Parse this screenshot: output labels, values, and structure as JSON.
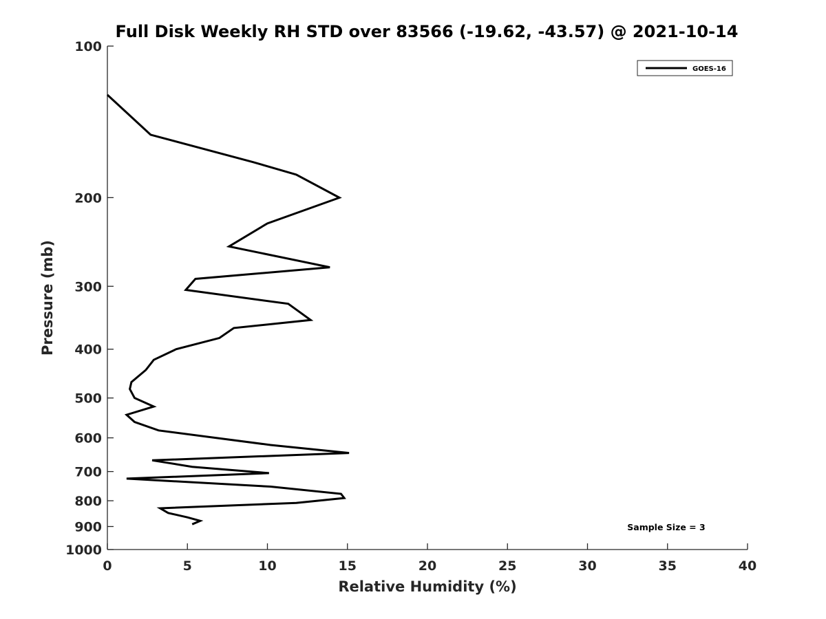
{
  "chart_data": {
    "type": "line",
    "title": "Full Disk Weekly RH STD over 83566 (-19.62, -43.57) @ 2021-10-14",
    "xlabel": "Relative Humidity (%)",
    "ylabel": "Pressure (mb)",
    "xlim": [
      0,
      40
    ],
    "ylim": [
      100,
      1000
    ],
    "yscale": "log",
    "y_reversed": true,
    "grid": false,
    "xticks": [
      0,
      5,
      10,
      15,
      20,
      25,
      30,
      35,
      40
    ],
    "xtick_labels": [
      "0",
      "5",
      "10",
      "15",
      "20",
      "25",
      "30",
      "35",
      "40"
    ],
    "yticks": [
      100,
      200,
      300,
      400,
      500,
      600,
      700,
      800,
      900,
      1000
    ],
    "ytick_labels": [
      "100",
      "200",
      "300",
      "400",
      "500",
      "600",
      "700",
      "800",
      "900",
      "1000"
    ],
    "legend": {
      "position": "top-right",
      "entries": [
        "GOES-16"
      ]
    },
    "annotation": "Sample Size = 3",
    "series": [
      {
        "name": "GOES-16",
        "color": "#000000",
        "x": [
          0.0,
          2.7,
          9.1,
          11.8,
          14.5,
          10.0,
          7.6,
          13.9,
          5.5,
          4.9,
          11.3,
          12.7,
          7.9,
          7.0,
          4.3,
          2.9,
          2.4,
          1.5,
          1.4,
          1.7,
          2.9,
          1.2,
          1.7,
          3.2,
          10.2,
          15.1,
          2.8,
          5.3,
          10.1,
          1.2,
          10.2,
          14.6,
          14.8,
          11.8,
          3.3,
          3.8,
          5.0,
          5.8,
          5.3
        ],
        "y": [
          125,
          150,
          170,
          180,
          200,
          225,
          250,
          275,
          290,
          305,
          325,
          350,
          363,
          380,
          400,
          420,
          440,
          465,
          480,
          500,
          520,
          540,
          558,
          580,
          620,
          643,
          665,
          685,
          705,
          723,
          750,
          775,
          790,
          808,
          828,
          846,
          863,
          877,
          891
        ]
      }
    ]
  }
}
